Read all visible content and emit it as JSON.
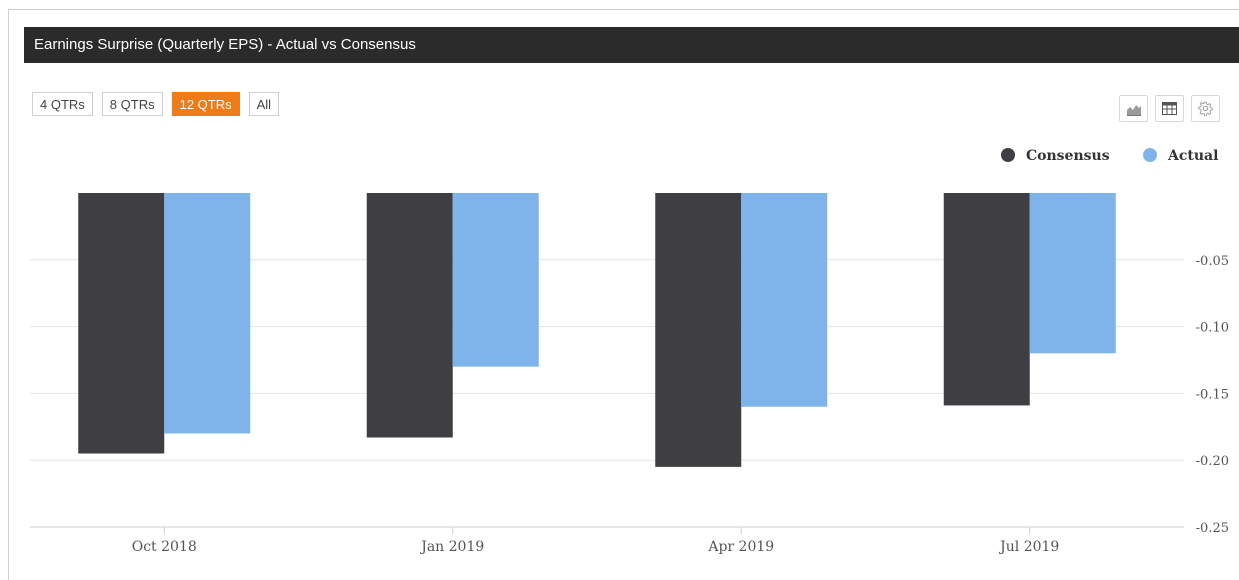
{
  "header": {
    "title": "Earnings Surprise (Quarterly EPS) - Actual vs Consensus"
  },
  "range_buttons": [
    {
      "label": "4 QTRs",
      "active": false
    },
    {
      "label": "8 QTRs",
      "active": false
    },
    {
      "label": "12 QTRs",
      "active": true
    },
    {
      "label": "All",
      "active": false
    }
  ],
  "toolbar": {
    "icons": [
      "area-chart-icon",
      "table-icon",
      "gear-icon"
    ]
  },
  "colors": {
    "consensus": "#3f3f43",
    "actual": "#7eb4ea",
    "accent": "#f07b19",
    "title_bar": "#2b2b2b"
  },
  "chart_data": {
    "type": "bar",
    "categories": [
      "Oct 2018",
      "Jan 2019",
      "Apr 2019",
      "Jul 2019"
    ],
    "series": [
      {
        "name": "Consensus",
        "values": [
          -0.195,
          -0.183,
          -0.205,
          -0.159
        ]
      },
      {
        "name": "Actual",
        "values": [
          -0.18,
          -0.13,
          -0.16,
          -0.12
        ]
      }
    ],
    "title": "Earnings Surprise (Quarterly EPS) - Actual vs Consensus",
    "xlabel": "",
    "ylabel": "",
    "ylim": [
      -0.25,
      0
    ],
    "yticks": [
      "-0.05",
      "-0.10",
      "-0.15",
      "-0.20",
      "-0.25"
    ],
    "y_axis_position": "right",
    "grid": true,
    "legend_position": "top-right"
  }
}
